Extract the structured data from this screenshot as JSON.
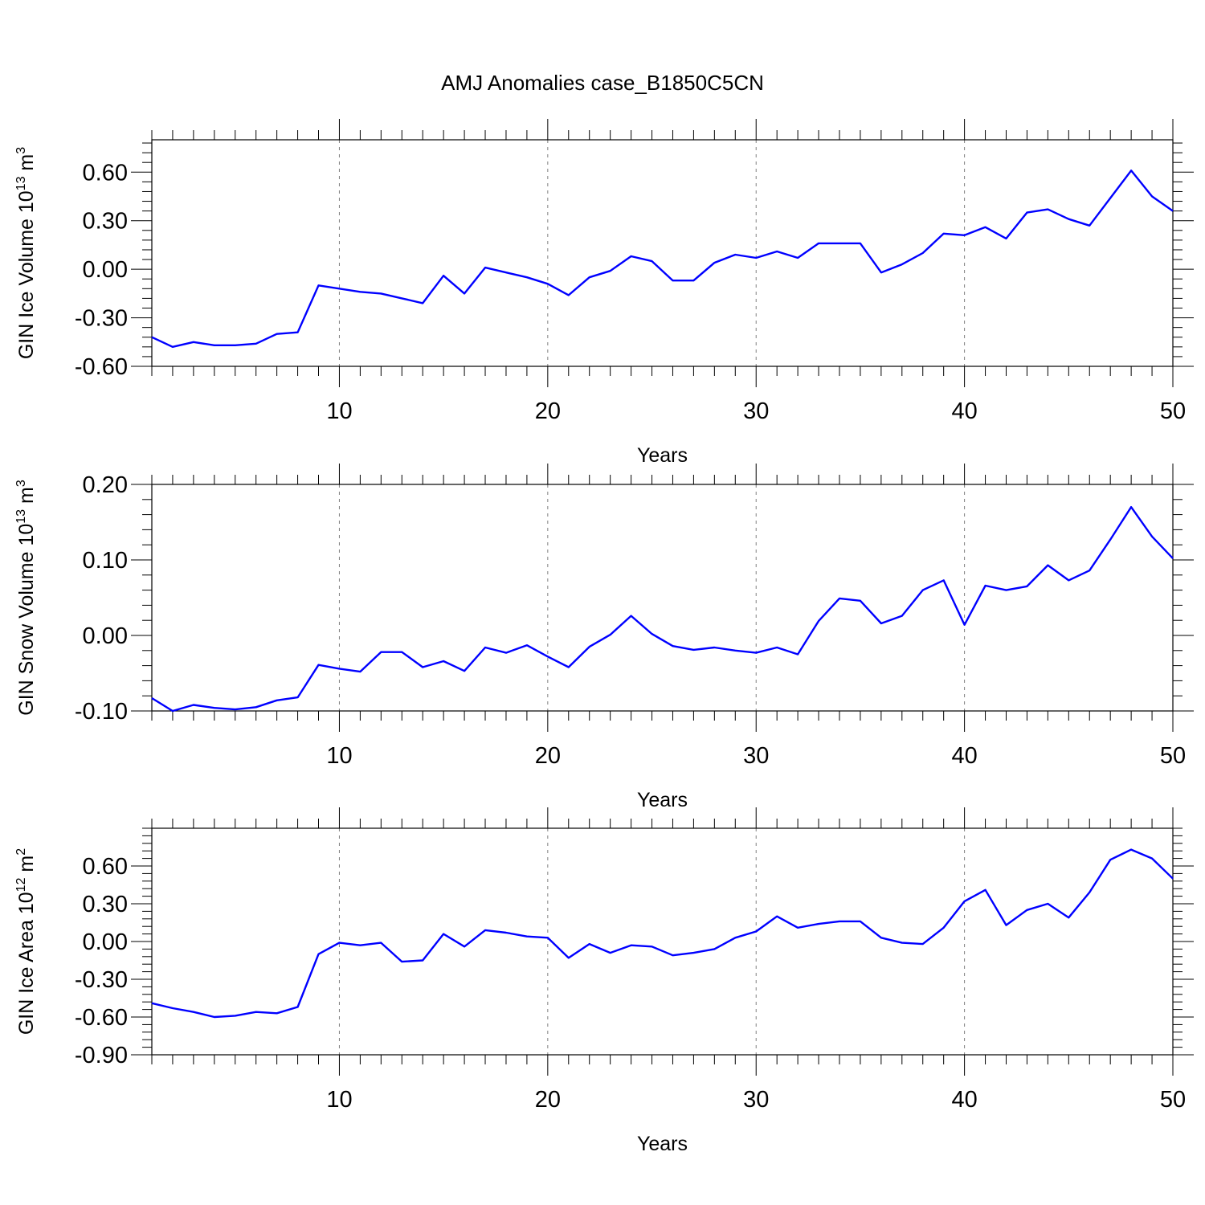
{
  "title": "AMJ Anomalies case_B1850C5CN",
  "colors": {
    "line": "#0000ff",
    "axis": "#000000",
    "grid": "#808080"
  },
  "chart_data": [
    {
      "type": "line",
      "title": "AMJ Anomalies case_B1850C5CN",
      "xlabel": "Years",
      "ylabel": {
        "main": "GIN Ice Volume 10",
        "exp": "13",
        "unit": " m",
        "unit_exp": "3"
      },
      "xlim": [
        1,
        50
      ],
      "ylim": [
        -0.6,
        0.8
      ],
      "xticks": [
        10,
        20,
        30,
        40,
        50
      ],
      "xtick_labels": [
        "10",
        "20",
        "30",
        "40",
        "50"
      ],
      "yticks": [
        -0.6,
        -0.3,
        0.0,
        0.3,
        0.6
      ],
      "ytick_labels": [
        "-0.60",
        "-0.30",
        "0.00",
        "0.30",
        "0.60"
      ],
      "grid": "x dashed",
      "series": [
        {
          "x": [
            1,
            2,
            3,
            4,
            5,
            6,
            7,
            8,
            9,
            10,
            11,
            12,
            13,
            14,
            15,
            16,
            17,
            18,
            19,
            20,
            21,
            22,
            23,
            24,
            25,
            26,
            27,
            28,
            29,
            30,
            31,
            32,
            33,
            34,
            35,
            36,
            37,
            38,
            39,
            40,
            41,
            42,
            43,
            44,
            45,
            46,
            47,
            48,
            49,
            50
          ],
          "values": [
            -0.42,
            -0.48,
            -0.45,
            -0.47,
            -0.47,
            -0.46,
            -0.4,
            -0.39,
            -0.1,
            -0.12,
            -0.14,
            -0.15,
            -0.18,
            -0.21,
            -0.04,
            -0.15,
            0.01,
            -0.02,
            -0.05,
            -0.09,
            -0.16,
            -0.05,
            -0.01,
            0.08,
            0.05,
            -0.07,
            -0.07,
            0.04,
            0.09,
            0.07,
            0.11,
            0.07,
            0.16,
            0.16,
            0.16,
            -0.02,
            0.03,
            0.1,
            0.22,
            0.21,
            0.26,
            0.19,
            0.35,
            0.37,
            0.31,
            0.27,
            0.44,
            0.61,
            0.45,
            0.36
          ]
        }
      ]
    },
    {
      "type": "line",
      "xlabel": "Years",
      "ylabel": {
        "main": "GIN Snow Volume 10",
        "exp": "13",
        "unit": " m",
        "unit_exp": "3"
      },
      "xlim": [
        1,
        50
      ],
      "ylim": [
        -0.1,
        0.2
      ],
      "xticks": [
        10,
        20,
        30,
        40,
        50
      ],
      "xtick_labels": [
        "10",
        "20",
        "30",
        "40",
        "50"
      ],
      "yticks": [
        -0.1,
        0.0,
        0.1,
        0.2
      ],
      "ytick_labels": [
        "-0.10",
        "0.00",
        "0.10",
        "0.20"
      ],
      "grid": "x dashed",
      "series": [
        {
          "x": [
            1,
            2,
            3,
            4,
            5,
            6,
            7,
            8,
            9,
            10,
            11,
            12,
            13,
            14,
            15,
            16,
            17,
            18,
            19,
            20,
            21,
            22,
            23,
            24,
            25,
            26,
            27,
            28,
            29,
            30,
            31,
            32,
            33,
            34,
            35,
            36,
            37,
            38,
            39,
            40,
            41,
            42,
            43,
            44,
            45,
            46,
            47,
            48,
            49,
            50
          ],
          "values": [
            -0.083,
            -0.1,
            -0.092,
            -0.096,
            -0.098,
            -0.095,
            -0.086,
            -0.082,
            -0.039,
            -0.044,
            -0.048,
            -0.022,
            -0.022,
            -0.042,
            -0.034,
            -0.047,
            -0.016,
            -0.023,
            -0.013,
            -0.028,
            -0.042,
            -0.015,
            0.001,
            0.026,
            0.002,
            -0.014,
            -0.019,
            -0.016,
            -0.02,
            -0.023,
            -0.016,
            -0.025,
            0.019,
            0.049,
            0.046,
            0.016,
            0.026,
            0.06,
            0.073,
            0.014,
            0.066,
            0.06,
            0.065,
            0.093,
            0.073,
            0.086,
            0.127,
            0.17,
            0.131,
            0.102
          ]
        }
      ]
    },
    {
      "type": "line",
      "xlabel": "Years",
      "ylabel": {
        "main": "GIN Ice Area 10",
        "exp": "12",
        "unit": " m",
        "unit_exp": "2"
      },
      "xlim": [
        1,
        50
      ],
      "ylim": [
        -0.9,
        0.9
      ],
      "xticks": [
        10,
        20,
        30,
        40,
        50
      ],
      "xtick_labels": [
        "10",
        "20",
        "30",
        "40",
        "50"
      ],
      "yticks": [
        -0.9,
        -0.6,
        -0.3,
        0.0,
        0.3,
        0.6
      ],
      "ytick_labels": [
        "-0.90",
        "-0.60",
        "-0.30",
        "0.00",
        "0.30",
        "0.60"
      ],
      "grid": "x dashed",
      "series": [
        {
          "x": [
            1,
            2,
            3,
            4,
            5,
            6,
            7,
            8,
            9,
            10,
            11,
            12,
            13,
            14,
            15,
            16,
            17,
            18,
            19,
            20,
            21,
            22,
            23,
            24,
            25,
            26,
            27,
            28,
            29,
            30,
            31,
            32,
            33,
            34,
            35,
            36,
            37,
            38,
            39,
            40,
            41,
            42,
            43,
            44,
            45,
            46,
            47,
            48,
            49,
            50
          ],
          "values": [
            -0.49,
            -0.53,
            -0.56,
            -0.6,
            -0.59,
            -0.56,
            -0.57,
            -0.52,
            -0.1,
            -0.01,
            -0.03,
            -0.01,
            -0.16,
            -0.15,
            0.06,
            -0.04,
            0.09,
            0.07,
            0.04,
            0.03,
            -0.13,
            -0.02,
            -0.09,
            -0.03,
            -0.04,
            -0.11,
            -0.09,
            -0.06,
            0.03,
            0.08,
            0.2,
            0.11,
            0.14,
            0.16,
            0.16,
            0.03,
            -0.01,
            -0.02,
            0.11,
            0.32,
            0.41,
            0.13,
            0.25,
            0.3,
            0.19,
            0.39,
            0.65,
            0.73,
            0.66,
            0.5
          ]
        }
      ]
    }
  ]
}
